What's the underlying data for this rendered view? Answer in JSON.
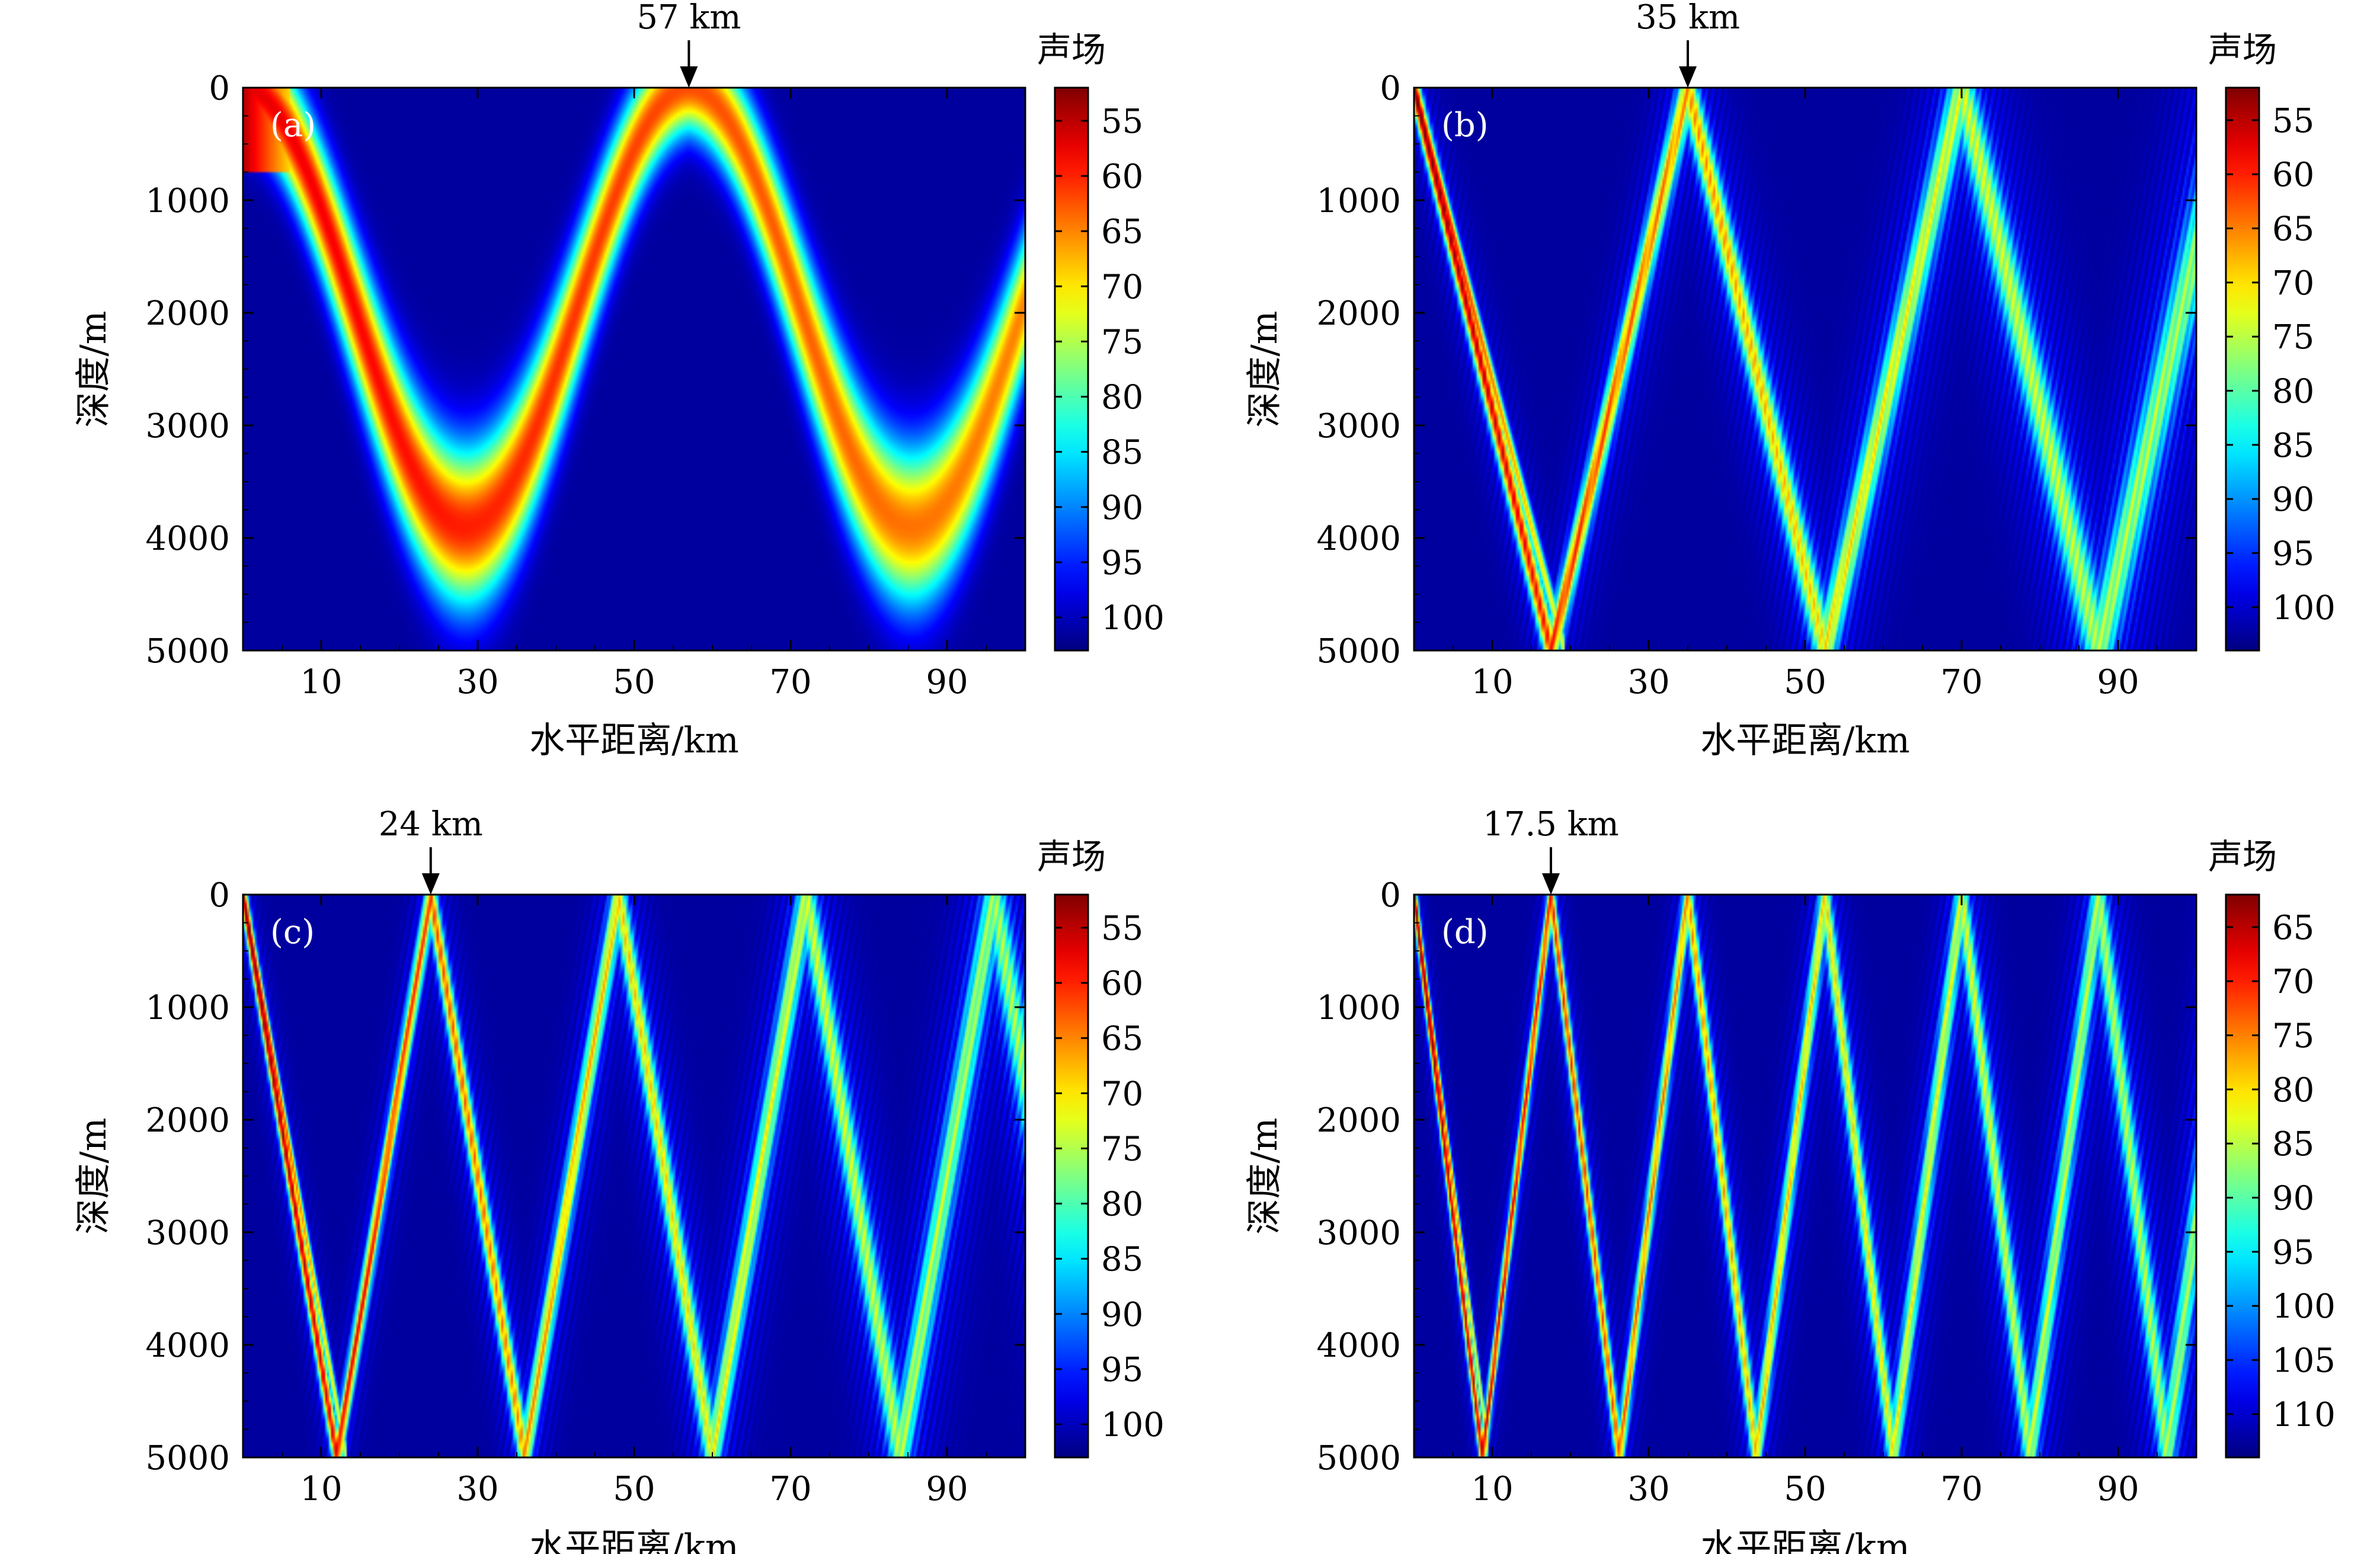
{
  "figure": {
    "panels": [
      {
        "id": "a",
        "panel_label": "(a)",
        "arrow_label": "57 km",
        "arrow_x": 57,
        "colorbar_title": "声场",
        "xlabel": "水平距离/km",
        "ylabel": "深度/m",
        "xticks": [
          10,
          30,
          50,
          70,
          90
        ],
        "yticks": [
          0,
          1000,
          2000,
          3000,
          4000,
          5000
        ],
        "colorbar_ticks": [
          55,
          60,
          65,
          70,
          75,
          80,
          85,
          90,
          95,
          100
        ],
        "colorbar_range": [
          52,
          103
        ],
        "pattern": "convergence-zone",
        "period_km": 57
      },
      {
        "id": "b",
        "panel_label": "(b)",
        "arrow_label": "35 km",
        "arrow_x": 35,
        "colorbar_title": "声场",
        "xlabel": "水平距离/km",
        "ylabel": "深度/m",
        "xticks": [
          10,
          30,
          50,
          70,
          90
        ],
        "yticks": [
          0,
          1000,
          2000,
          3000,
          4000,
          5000
        ],
        "colorbar_ticks": [
          55,
          60,
          65,
          70,
          75,
          80,
          85,
          90,
          95,
          100
        ],
        "colorbar_range": [
          52,
          104
        ],
        "pattern": "bottom-bounce",
        "period_km": 35
      },
      {
        "id": "c",
        "panel_label": "(c)",
        "arrow_label": "24 km",
        "arrow_x": 24,
        "colorbar_title": "声场",
        "xlabel": "水平距离/km",
        "ylabel": "深度/m",
        "xticks": [
          10,
          30,
          50,
          70,
          90
        ],
        "yticks": [
          0,
          1000,
          2000,
          3000,
          4000,
          5000
        ],
        "colorbar_ticks": [
          55,
          60,
          65,
          70,
          75,
          80,
          85,
          90,
          95,
          100
        ],
        "colorbar_range": [
          52,
          103
        ],
        "pattern": "bottom-bounce",
        "period_km": 24
      },
      {
        "id": "d",
        "panel_label": "(d)",
        "arrow_label": "17.5 km",
        "arrow_x": 17.5,
        "colorbar_title": "声场",
        "xlabel": "水平距离/km",
        "ylabel": "深度/m",
        "xticks": [
          10,
          30,
          50,
          70,
          90
        ],
        "yticks": [
          0,
          1000,
          2000,
          3000,
          4000,
          5000
        ],
        "colorbar_ticks": [
          65,
          70,
          75,
          80,
          85,
          90,
          95,
          100,
          105,
          110
        ],
        "colorbar_range": [
          62,
          114
        ],
        "pattern": "bottom-bounce",
        "period_km": 17.5
      }
    ]
  },
  "chart_data": [
    {
      "type": "heatmap",
      "panel": "(a)",
      "title": "",
      "xlabel": "水平距离/km",
      "ylabel": "深度/m",
      "xlim": [
        0,
        100
      ],
      "ylim": [
        5000,
        0
      ],
      "x_ticks": [
        10,
        30,
        50,
        70,
        90
      ],
      "y_ticks": [
        0,
        1000,
        2000,
        3000,
        4000,
        5000
      ],
      "colorbar_label": "声场",
      "colorbar_ticks": [
        55,
        60,
        65,
        70,
        75,
        80,
        85,
        90,
        95,
        100
      ],
      "colormap": "jet_reversed",
      "annotation": {
        "text": "57 km",
        "x": 57,
        "y": 0
      },
      "colors": {
        "low": "#00008f",
        "high": "#800000"
      }
    },
    {
      "type": "heatmap",
      "panel": "(b)",
      "title": "",
      "xlabel": "水平距离/km",
      "ylabel": "深度/m",
      "xlim": [
        0,
        100
      ],
      "ylim": [
        5000,
        0
      ],
      "x_ticks": [
        10,
        30,
        50,
        70,
        90
      ],
      "y_ticks": [
        0,
        1000,
        2000,
        3000,
        4000,
        5000
      ],
      "colorbar_label": "声场",
      "colorbar_ticks": [
        55,
        60,
        65,
        70,
        75,
        80,
        85,
        90,
        95,
        100
      ],
      "colormap": "jet_reversed",
      "annotation": {
        "text": "35 km",
        "x": 35,
        "y": 0
      }
    },
    {
      "type": "heatmap",
      "panel": "(c)",
      "title": "",
      "xlabel": "水平距离/km",
      "ylabel": "深度/m",
      "xlim": [
        0,
        100
      ],
      "ylim": [
        5000,
        0
      ],
      "x_ticks": [
        10,
        30,
        50,
        70,
        90
      ],
      "y_ticks": [
        0,
        1000,
        2000,
        3000,
        4000,
        5000
      ],
      "colorbar_label": "声场",
      "colorbar_ticks": [
        55,
        60,
        65,
        70,
        75,
        80,
        85,
        90,
        95,
        100
      ],
      "colormap": "jet_reversed",
      "annotation": {
        "text": "24 km",
        "x": 24,
        "y": 0
      }
    },
    {
      "type": "heatmap",
      "panel": "(d)",
      "title": "",
      "xlabel": "水平距离/km",
      "ylabel": "深度/m",
      "xlim": [
        0,
        100
      ],
      "ylim": [
        5000,
        0
      ],
      "x_ticks": [
        10,
        30,
        50,
        70,
        90
      ],
      "y_ticks": [
        0,
        1000,
        2000,
        3000,
        4000,
        5000
      ],
      "colorbar_label": "声场",
      "colorbar_ticks": [
        65,
        70,
        75,
        80,
        85,
        90,
        95,
        100,
        105,
        110
      ],
      "colormap": "jet_reversed",
      "annotation": {
        "text": "17.5 km",
        "x": 17.5,
        "y": 0
      }
    }
  ]
}
